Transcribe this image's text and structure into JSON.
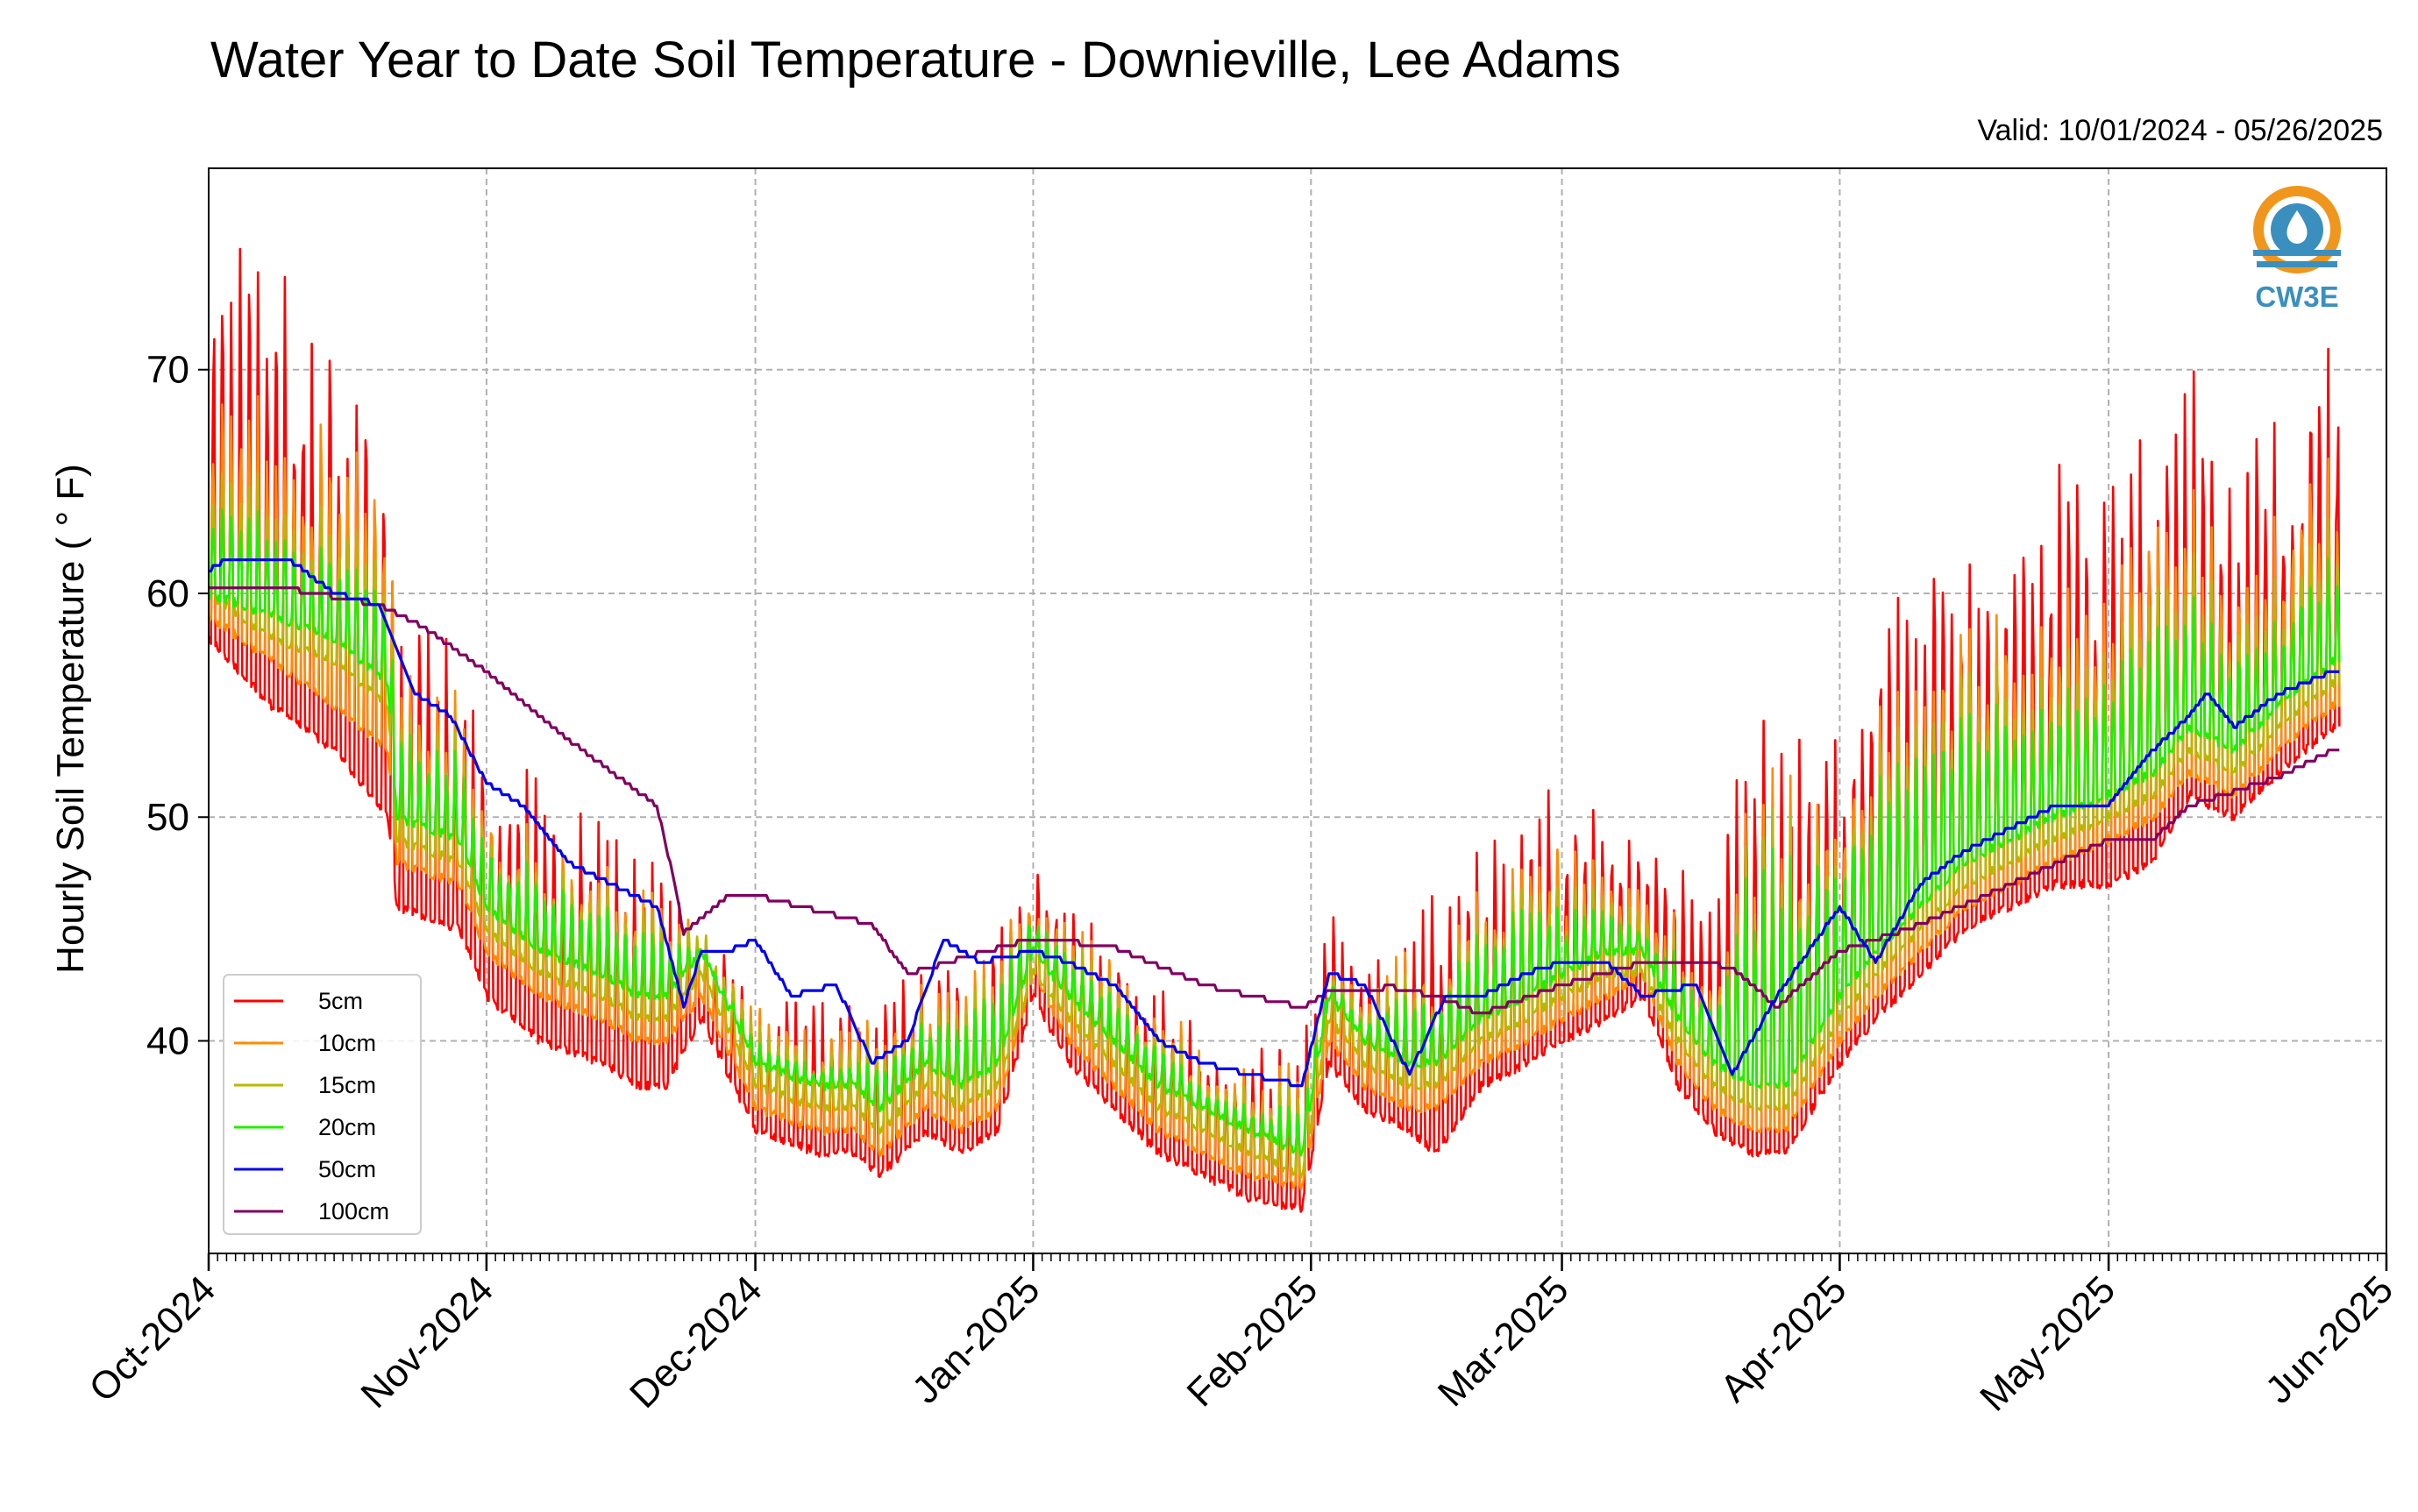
{
  "chart_data": {
    "type": "line",
    "title": "Water Year to Date Soil Temperature - Downieville, Lee Adams",
    "subtitle": "Valid: 10/01/2024 - 05/26/2025",
    "xlabel": "",
    "ylabel": "Hourly Soil Temperature ( ° F)",
    "xlim": [
      "2024-10-01",
      "2025-06-01"
    ],
    "ylim": [
      30.5,
      79
    ],
    "yticks": [
      40,
      50,
      60,
      70
    ],
    "xtick_labels": [
      "Oct-2024",
      "Nov-2024",
      "Dec-2024",
      "Jan-2025",
      "Feb-2025",
      "Mar-2025",
      "Apr-2025",
      "May-2025",
      "Jun-2025"
    ],
    "grid": true,
    "legend_position": "lower-left",
    "logo_text": "CW3E",
    "series": [
      {
        "name": "5cm",
        "color": "#ff0000",
        "note_amplitude": "daily min/max envelope",
        "x": [
          "2024-10-01",
          "2024-10-08",
          "2024-10-15",
          "2024-10-21",
          "2024-10-22",
          "2024-10-29",
          "2024-11-01",
          "2024-11-07",
          "2024-11-14",
          "2024-11-18",
          "2024-11-21",
          "2024-11-25",
          "2024-12-01",
          "2024-12-08",
          "2024-12-12",
          "2024-12-15",
          "2024-12-20",
          "2024-12-24",
          "2024-12-28",
          "2025-01-01",
          "2025-01-05",
          "2025-01-10",
          "2025-01-15",
          "2025-01-20",
          "2025-01-25",
          "2025-01-31",
          "2025-02-03",
          "2025-02-07",
          "2025-02-12",
          "2025-02-15",
          "2025-02-20",
          "2025-02-25",
          "2025-03-01",
          "2025-03-06",
          "2025-03-10",
          "2025-03-14",
          "2025-03-18",
          "2025-03-22",
          "2025-03-26",
          "2025-04-01",
          "2025-04-05",
          "2025-04-10",
          "2025-04-15",
          "2025-04-20",
          "2025-04-25",
          "2025-05-01",
          "2025-05-06",
          "2025-05-10",
          "2025-05-15",
          "2025-05-20",
          "2025-05-26"
        ],
        "min": [
          58,
          55,
          53,
          50,
          46,
          45,
          42,
          40,
          39,
          38,
          38,
          41,
          36,
          35,
          35,
          34,
          36,
          35,
          36,
          42,
          39,
          37,
          35,
          34,
          33,
          32.5,
          39,
          37,
          36,
          35,
          38,
          39,
          40,
          41,
          42,
          38,
          36,
          35,
          35,
          39,
          41,
          43,
          45,
          46,
          47,
          47,
          48,
          51,
          50,
          52,
          54
        ],
        "max": [
          77,
          76,
          72,
          70,
          60,
          59,
          53,
          52,
          50,
          49,
          48,
          46,
          43,
          42,
          42,
          42,
          44,
          44,
          46,
          48,
          47,
          45,
          43,
          41,
          40,
          40,
          46,
          44,
          45,
          47,
          49,
          51,
          52,
          50,
          49,
          48,
          46,
          58,
          56,
          55,
          61,
          63,
          64,
          66,
          66,
          67,
          69,
          71,
          66,
          69,
          73
        ]
      },
      {
        "name": "10cm",
        "color": "#ff8c00",
        "x": [
          "2024-10-01",
          "2024-10-08",
          "2024-10-15",
          "2024-10-21",
          "2024-10-22",
          "2024-10-29",
          "2024-11-01",
          "2024-11-07",
          "2024-11-14",
          "2024-11-18",
          "2024-11-21",
          "2024-11-25",
          "2024-12-01",
          "2024-12-08",
          "2024-12-12",
          "2024-12-15",
          "2024-12-20",
          "2024-12-24",
          "2024-12-28",
          "2025-01-01",
          "2025-01-05",
          "2025-01-10",
          "2025-01-15",
          "2025-01-20",
          "2025-01-25",
          "2025-01-31",
          "2025-02-03",
          "2025-02-07",
          "2025-02-12",
          "2025-02-15",
          "2025-02-20",
          "2025-02-25",
          "2025-03-01",
          "2025-03-06",
          "2025-03-10",
          "2025-03-14",
          "2025-03-18",
          "2025-03-22",
          "2025-03-26",
          "2025-04-01",
          "2025-04-05",
          "2025-04-10",
          "2025-04-15",
          "2025-04-20",
          "2025-04-25",
          "2025-05-01",
          "2025-05-06",
          "2025-05-10",
          "2025-05-15",
          "2025-05-20",
          "2025-05-26"
        ],
        "min": [
          59,
          57,
          55,
          53,
          48,
          47,
          44,
          42,
          41,
          40,
          40,
          42,
          37,
          36,
          36,
          35,
          37,
          36,
          37,
          43,
          40,
          38,
          36,
          35,
          34,
          33.5,
          40,
          38,
          37,
          37,
          39,
          40,
          41,
          42,
          43,
          39,
          37,
          36,
          36,
          40,
          42,
          44,
          46,
          47,
          48,
          49,
          50,
          52,
          51,
          53,
          55
        ],
        "max": [
          71,
          70,
          68,
          67,
          57,
          56,
          51,
          50,
          48,
          47,
          47,
          45,
          42,
          41,
          41,
          41,
          43,
          43,
          45,
          47,
          46,
          44,
          42,
          40,
          39,
          39,
          45,
          43,
          44,
          45,
          47,
          48,
          49,
          48,
          47,
          46,
          44,
          54,
          53,
          52,
          57,
          58,
          59,
          61,
          61,
          62,
          64,
          65,
          62,
          64,
          67
        ]
      },
      {
        "name": "15cm",
        "color": "#b8b800",
        "x": [
          "2024-10-01",
          "2024-10-08",
          "2024-10-15",
          "2024-10-21",
          "2024-10-22",
          "2024-10-29",
          "2024-11-01",
          "2024-11-07",
          "2024-11-14",
          "2024-11-18",
          "2024-11-21",
          "2024-11-25",
          "2024-12-01",
          "2024-12-08",
          "2024-12-12",
          "2024-12-15",
          "2024-12-20",
          "2024-12-24",
          "2024-12-28",
          "2025-01-01",
          "2025-01-05",
          "2025-01-10",
          "2025-01-15",
          "2025-01-20",
          "2025-01-25",
          "2025-01-31",
          "2025-02-03",
          "2025-02-07",
          "2025-02-12",
          "2025-02-15",
          "2025-02-20",
          "2025-02-25",
          "2025-03-01",
          "2025-03-06",
          "2025-03-10",
          "2025-03-14",
          "2025-03-18",
          "2025-03-22",
          "2025-03-26",
          "2025-04-01",
          "2025-04-05",
          "2025-04-10",
          "2025-04-15",
          "2025-04-20",
          "2025-04-25",
          "2025-05-01",
          "2025-05-06",
          "2025-05-10",
          "2025-05-15",
          "2025-05-20",
          "2025-05-26"
        ],
        "min": [
          60,
          58,
          57,
          55,
          49,
          48,
          45,
          43,
          42,
          41,
          41,
          43,
          38,
          37,
          37,
          36,
          38,
          37,
          38,
          43,
          41,
          39,
          37,
          36,
          35,
          34,
          41,
          39,
          38,
          38,
          40,
          41,
          42,
          43,
          43,
          40,
          38,
          37,
          37,
          41,
          43,
          45,
          47,
          48,
          49,
          50,
          51,
          53,
          52,
          54,
          56
        ],
        "max": [
          67,
          66,
          64,
          63,
          55,
          54,
          50,
          49,
          47,
          46,
          46,
          45,
          41,
          40,
          40,
          40,
          42,
          42,
          44,
          46,
          45,
          43,
          41,
          39,
          38,
          38,
          44,
          42,
          43,
          44,
          46,
          47,
          47,
          47,
          46,
          45,
          43,
          52,
          51,
          50,
          55,
          56,
          57,
          58,
          58,
          59,
          61,
          62,
          60,
          61,
          64
        ]
      },
      {
        "name": "20cm",
        "color": "#22ee00",
        "x": [
          "2024-10-01",
          "2024-10-08",
          "2024-10-15",
          "2024-10-21",
          "2024-10-22",
          "2024-10-29",
          "2024-11-01",
          "2024-11-07",
          "2024-11-14",
          "2024-11-18",
          "2024-11-21",
          "2024-11-25",
          "2024-12-01",
          "2024-12-08",
          "2024-12-12",
          "2024-12-15",
          "2024-12-20",
          "2024-12-24",
          "2024-12-28",
          "2025-01-01",
          "2025-01-05",
          "2025-01-10",
          "2025-01-15",
          "2025-01-20",
          "2025-01-25",
          "2025-01-31",
          "2025-02-03",
          "2025-02-07",
          "2025-02-12",
          "2025-02-15",
          "2025-02-20",
          "2025-02-25",
          "2025-03-01",
          "2025-03-06",
          "2025-03-10",
          "2025-03-14",
          "2025-03-18",
          "2025-03-22",
          "2025-03-26",
          "2025-04-01",
          "2025-04-05",
          "2025-04-10",
          "2025-04-15",
          "2025-04-20",
          "2025-04-25",
          "2025-05-01",
          "2025-05-06",
          "2025-05-10",
          "2025-05-15",
          "2025-05-20",
          "2025-05-26"
        ],
        "min": [
          60,
          59,
          58,
          56,
          50,
          49,
          46,
          44,
          43,
          42,
          42,
          44,
          39,
          38,
          38,
          37,
          39,
          38,
          39,
          44,
          42,
          40,
          38,
          37,
          36,
          35,
          42,
          40,
          39,
          39,
          41,
          42,
          43,
          44,
          44,
          41,
          39,
          38,
          38,
          42,
          44,
          46,
          48,
          49,
          50,
          51,
          52,
          54,
          53,
          55,
          57
        ],
        "max": [
          65,
          64,
          62,
          61,
          54,
          53,
          49,
          48,
          46,
          45,
          45,
          44,
          40,
          39,
          39,
          39,
          41,
          41,
          43,
          46,
          44,
          42,
          40,
          38,
          37,
          37,
          43,
          41,
          42,
          43,
          45,
          46,
          46,
          46,
          45,
          44,
          42,
          50,
          49,
          49,
          53,
          54,
          55,
          56,
          56,
          57,
          59,
          60,
          58,
          59,
          62
        ]
      },
      {
        "name": "50cm",
        "color": "#0000ee",
        "x": [
          "2024-10-01",
          "2024-10-03",
          "2024-10-10",
          "2024-10-15",
          "2024-10-20",
          "2024-10-24",
          "2024-10-28",
          "2024-11-01",
          "2024-11-05",
          "2024-11-10",
          "2024-11-15",
          "2024-11-20",
          "2024-11-23",
          "2024-11-25",
          "2024-11-28",
          "2024-12-01",
          "2024-12-05",
          "2024-12-10",
          "2024-12-14",
          "2024-12-18",
          "2024-12-22",
          "2024-12-26",
          "2025-01-01",
          "2025-01-05",
          "2025-01-10",
          "2025-01-15",
          "2025-01-20",
          "2025-01-25",
          "2025-01-31",
          "2025-02-03",
          "2025-02-07",
          "2025-02-12",
          "2025-02-16",
          "2025-02-20",
          "2025-02-25",
          "2025-03-01",
          "2025-03-06",
          "2025-03-10",
          "2025-03-16",
          "2025-03-20",
          "2025-03-25",
          "2025-04-01",
          "2025-04-05",
          "2025-04-10",
          "2025-04-15",
          "2025-04-20",
          "2025-04-25",
          "2025-05-01",
          "2025-05-06",
          "2025-05-10",
          "2025-05-12",
          "2025-05-15",
          "2025-05-20",
          "2025-05-26"
        ],
        "values": [
          61,
          61.5,
          61.5,
          60,
          59.5,
          55.5,
          54.5,
          51.5,
          50.5,
          48,
          47,
          46,
          41.5,
          44,
          44,
          44.5,
          42,
          42.5,
          39,
          40,
          44.5,
          43.5,
          44,
          43.5,
          42.5,
          40,
          39,
          38.5,
          38,
          43,
          42.5,
          38.5,
          42,
          42,
          43,
          43.5,
          43.5,
          42,
          42.5,
          38.5,
          42,
          46,
          43.5,
          47,
          48.5,
          49.5,
          50.5,
          50.5,
          53,
          54.5,
          55.5,
          54,
          55.5,
          56.5
        ]
      },
      {
        "name": "100cm",
        "color": "#800060",
        "x": [
          "2024-10-01",
          "2024-10-10",
          "2024-10-20",
          "2024-10-25",
          "2024-11-01",
          "2024-11-10",
          "2024-11-20",
          "2024-11-22",
          "2024-11-23",
          "2024-11-28",
          "2024-12-01",
          "2024-12-08",
          "2024-12-14",
          "2024-12-18",
          "2025-01-01",
          "2025-01-10",
          "2025-01-20",
          "2025-01-31",
          "2025-02-03",
          "2025-02-10",
          "2025-02-15",
          "2025-02-20",
          "2025-03-01",
          "2025-03-10",
          "2025-03-16",
          "2025-03-20",
          "2025-03-25",
          "2025-04-01",
          "2025-04-10",
          "2025-04-20",
          "2025-05-01",
          "2025-05-06",
          "2025-05-10",
          "2025-05-20",
          "2025-05-26"
        ],
        "values": [
          60.3,
          60.2,
          59.5,
          58.5,
          56.5,
          53.5,
          50.5,
          47,
          44.8,
          46.5,
          46.5,
          45.8,
          45.2,
          43,
          44.6,
          44.2,
          42.5,
          41.5,
          42.2,
          42.4,
          42.0,
          41.2,
          42.5,
          43.5,
          43.5,
          43.3,
          41.5,
          44,
          45.2,
          47,
          49,
          49,
          50.5,
          51.8,
          53
        ]
      }
    ]
  }
}
